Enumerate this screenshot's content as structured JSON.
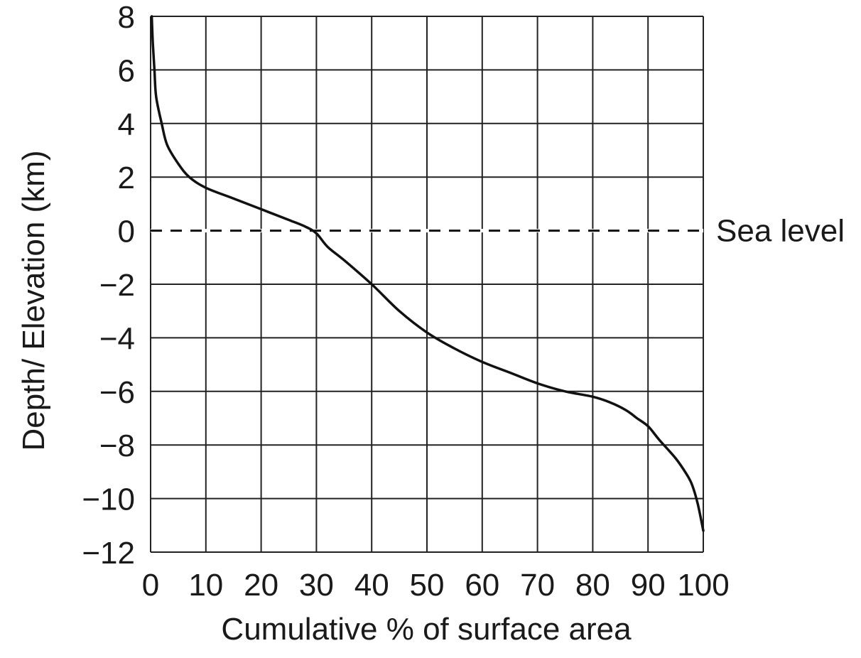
{
  "chart_data": {
    "type": "line",
    "title": "",
    "xlabel": "Cumulative % of surface area",
    "ylabel": "Depth/ Elevation (km)",
    "xlim": [
      0,
      100
    ],
    "ylim": [
      -12,
      8
    ],
    "x_ticks": [
      0,
      10,
      20,
      30,
      40,
      50,
      60,
      70,
      80,
      90,
      100
    ],
    "y_ticks": [
      8,
      6,
      4,
      2,
      0,
      -2,
      -4,
      -6,
      -8,
      -10,
      -12
    ],
    "x_tick_labels": [
      "0",
      "10",
      "20",
      "30",
      "40",
      "50",
      "60",
      "70",
      "80",
      "90",
      "100"
    ],
    "y_tick_labels": [
      "8",
      "6",
      "4",
      "2",
      "0",
      "−2",
      "−4",
      "−6",
      "−8",
      "−10",
      "−12"
    ],
    "grid": true,
    "series": [
      {
        "color": "#111111",
        "x": [
          0.2,
          0.4,
          0.7,
          1,
          2,
          3,
          5,
          7,
          10,
          15,
          20,
          25,
          28,
          30,
          32,
          35,
          40,
          45,
          50,
          55,
          60,
          65,
          70,
          75,
          80,
          83,
          86,
          88,
          90,
          92,
          95,
          97,
          98,
          99,
          100
        ],
        "y": [
          8,
          7,
          6,
          5,
          4,
          3.2,
          2.5,
          2.0,
          1.6,
          1.2,
          0.8,
          0.4,
          0.15,
          -0.1,
          -0.6,
          -1.1,
          -2.0,
          -3.0,
          -3.8,
          -4.4,
          -4.9,
          -5.3,
          -5.7,
          -6.0,
          -6.2,
          -6.4,
          -6.7,
          -7.0,
          -7.3,
          -7.8,
          -8.5,
          -9.1,
          -9.5,
          -10.2,
          -11.2
        ]
      }
    ],
    "reference_lines": [
      {
        "y": 0,
        "style": "dashed",
        "label": "Sea level"
      }
    ]
  }
}
